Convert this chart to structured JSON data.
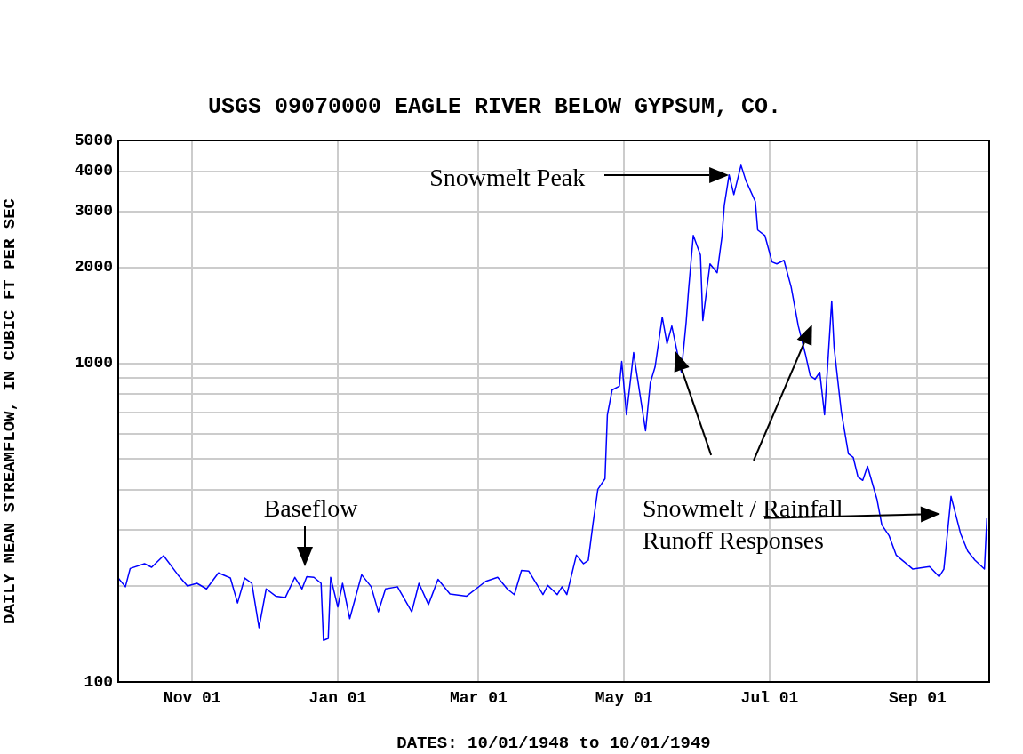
{
  "chart_data": {
    "type": "line",
    "title": "USGS 09070000 EAGLE RIVER BELOW GYPSUM, CO.",
    "xlabel": "DATES: 10/01/1948 to 10/01/1949",
    "ylabel": "DAILY MEAN STREAMFLOW, IN CUBIC FT PER SEC",
    "x": [
      "1948-10-01",
      "1948-10-04",
      "1948-10-06",
      "1948-10-12",
      "1948-10-15",
      "1948-10-20",
      "1948-10-26",
      "1948-10-30",
      "1948-11-03",
      "1948-11-07",
      "1948-11-12",
      "1948-11-17",
      "1948-11-20",
      "1948-11-23",
      "1948-11-26",
      "1948-11-29",
      "1948-12-02",
      "1948-12-06",
      "1948-12-10",
      "1948-12-14",
      "1948-12-17",
      "1948-12-19",
      "1948-12-22",
      "1948-12-25",
      "1948-12-26",
      "1948-12-28",
      "1948-12-29",
      "1949-01-01",
      "1949-01-03",
      "1949-01-06",
      "1949-01-11",
      "1949-01-15",
      "1949-01-18",
      "1949-01-21",
      "1949-01-26",
      "1949-02-01",
      "1949-02-04",
      "1949-02-08",
      "1949-02-12",
      "1949-02-17",
      "1949-02-24",
      "1949-03-04",
      "1949-03-09",
      "1949-03-13",
      "1949-03-16",
      "1949-03-19",
      "1949-03-22",
      "1949-03-28",
      "1949-03-30",
      "1949-04-03",
      "1949-04-05",
      "1949-04-07",
      "1949-04-11",
      "1949-04-14",
      "1949-04-16",
      "1949-04-18",
      "1949-04-20",
      "1949-04-23",
      "1949-04-24",
      "1949-04-26",
      "1949-04-29",
      "1949-04-30",
      "1949-05-02",
      "1949-05-05",
      "1949-05-06",
      "1949-05-10",
      "1949-05-12",
      "1949-05-14",
      "1949-05-17",
      "1949-05-19",
      "1949-05-21",
      "1949-05-25",
      "1949-05-27",
      "1949-05-28",
      "1949-05-30",
      "1949-06-02",
      "1949-06-03",
      "1949-06-06",
      "1949-06-09",
      "1949-06-11",
      "1949-06-12",
      "1949-06-14",
      "1949-06-16",
      "1949-06-19",
      "1949-06-21",
      "1949-06-25",
      "1949-06-26",
      "1949-06-29",
      "1949-07-02",
      "1949-07-04",
      "1949-07-07",
      "1949-07-10",
      "1949-07-13",
      "1949-07-16",
      "1949-07-18",
      "1949-07-20",
      "1949-07-22",
      "1949-07-24",
      "1949-07-27",
      "1949-07-28",
      "1949-07-31",
      "1949-08-03",
      "1949-08-05",
      "1949-08-07",
      "1949-08-09",
      "1949-08-11",
      "1949-08-15",
      "1949-08-17",
      "1949-08-20",
      "1949-08-23",
      "1949-08-30",
      "1949-09-06",
      "1949-09-10",
      "1949-09-12",
      "1949-09-15",
      "1949-09-19",
      "1949-09-22",
      "1949-09-25",
      "1949-09-29",
      "1949-09-30"
    ],
    "series": [
      {
        "color": "#0000ff",
        "values": [
          212,
          199,
          227,
          235,
          229,
          249,
          217,
          200,
          204,
          196,
          220,
          212,
          177,
          212,
          204,
          148,
          196,
          186,
          184,
          213,
          196,
          214,
          213,
          204,
          135,
          137,
          213,
          172,
          204,
          158,
          217,
          199,
          166,
          196,
          199,
          166,
          204,
          175,
          210,
          189,
          186,
          207,
          213,
          196,
          188,
          224,
          223,
          188,
          201,
          188,
          199,
          188,
          250,
          235,
          241,
          315,
          402,
          434,
          689,
          825,
          847,
          1013,
          689,
          1080,
          962,
          614,
          869,
          975,
          1395,
          1152,
          1309,
          937,
          1343,
          1692,
          2518,
          2188,
          1361,
          2051,
          1923,
          2487,
          3133,
          3898,
          3382,
          4180,
          3748,
          3214,
          2618,
          2518,
          2079,
          2051,
          2104,
          1737,
          1309,
          1067,
          914,
          891,
          937,
          689,
          1567,
          1122,
          707,
          520,
          507,
          440,
          429,
          475,
          373,
          311,
          288,
          250,
          226,
          230,
          214,
          226,
          382,
          292,
          257,
          241,
          226,
          326
        ]
      }
    ],
    "xlim": [
      "1948-10-01",
      "1949-10-01"
    ],
    "xticks": [
      {
        "value": "1948-11-01",
        "label": "Nov 01"
      },
      {
        "value": "1949-01-01",
        "label": "Jan 01"
      },
      {
        "value": "1949-03-01",
        "label": "Mar 01"
      },
      {
        "value": "1949-05-01",
        "label": "May 01"
      },
      {
        "value": "1949-07-01",
        "label": "Jul 01"
      },
      {
        "value": "1949-09-01",
        "label": "Sep 01"
      }
    ],
    "log": true,
    "ylim": [
      100,
      5000
    ],
    "yticks": [
      100,
      {
        "value": 200,
        "label": null
      },
      {
        "value": 300,
        "label": null
      },
      {
        "value": 400,
        "label": null
      },
      {
        "value": 500,
        "label": null
      },
      {
        "value": 600,
        "label": null
      },
      {
        "value": 700,
        "label": null
      },
      {
        "value": 800,
        "label": null
      },
      {
        "value": 900,
        "label": null
      },
      1000,
      2000,
      3000,
      4000,
      5000
    ],
    "grid": true,
    "legend": false,
    "marker": "none",
    "annotations": [
      "Snowmelt Peak",
      "Baseflow",
      "Snowmelt / Rainfall Runoff Responses"
    ]
  }
}
